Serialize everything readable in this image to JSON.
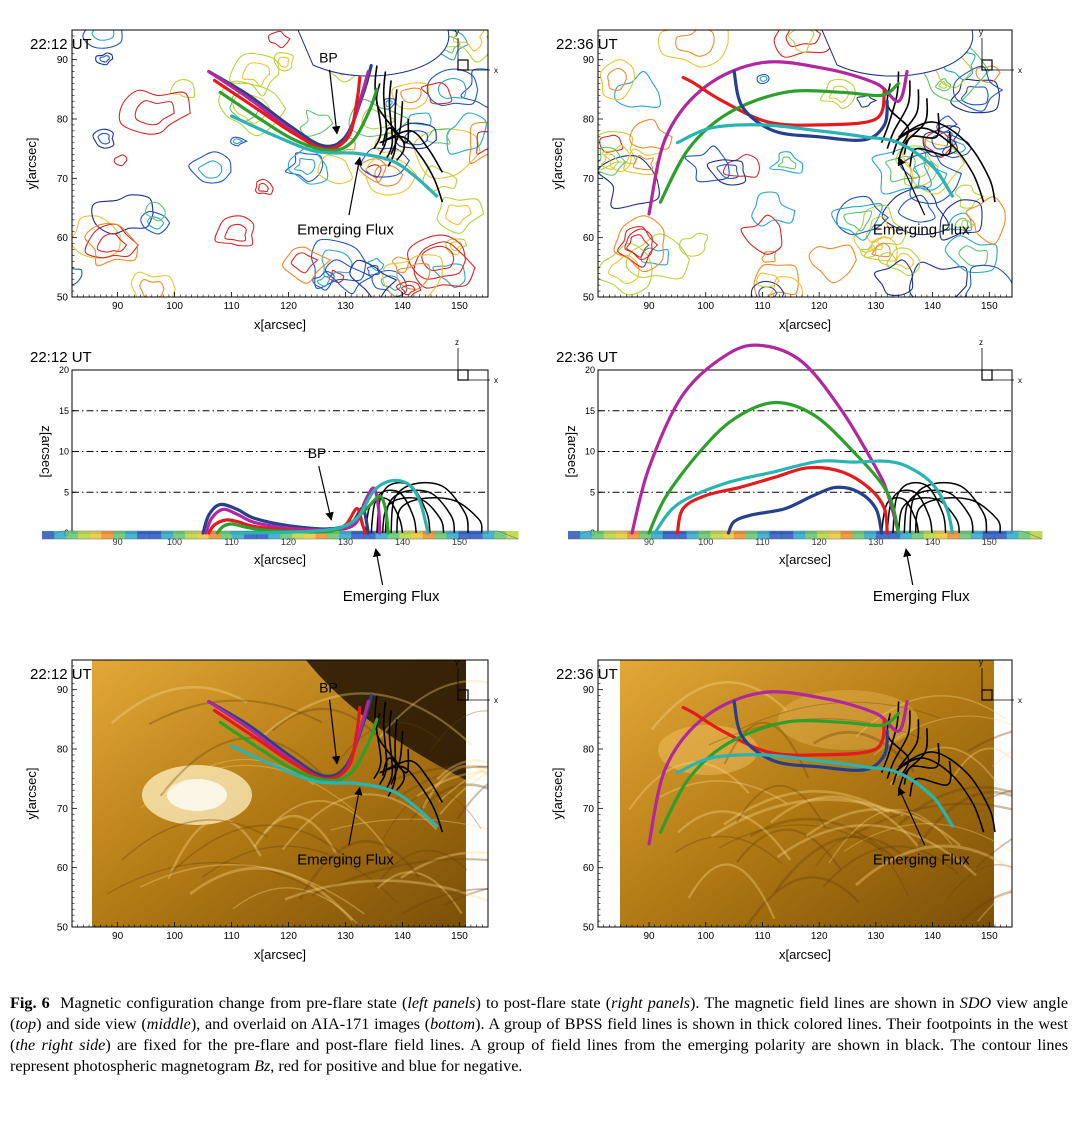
{
  "panels": {
    "top_left": {
      "time": "22:12 UT",
      "xlabel": "x[arcsec]",
      "ylabel": "y[arcsec]",
      "xticks": [
        "90",
        "100",
        "110",
        "120",
        "130",
        "140",
        "150"
      ],
      "yticks": [
        "50",
        "60",
        "70",
        "80",
        "90"
      ],
      "labels": {
        "bp": "BP",
        "ef": "Emerging Flux"
      }
    },
    "top_right": {
      "time": "22:36 UT",
      "xlabel": "x[arcsec]",
      "ylabel": "y[arcsec]",
      "xticks": [
        "90",
        "100",
        "110",
        "120",
        "130",
        "140",
        "150"
      ],
      "yticks": [
        "50",
        "60",
        "70",
        "80",
        "90"
      ],
      "labels": {
        "ef": "Emerging Flux"
      }
    },
    "mid_left": {
      "time": "22:12 UT",
      "xlabel": "x[arcsec]",
      "ylabel": "z[arcsec]",
      "xticks": [
        "90",
        "100",
        "110",
        "120",
        "130",
        "140",
        "150"
      ],
      "zticks": [
        "0",
        "5",
        "10",
        "15",
        "20"
      ],
      "labels": {
        "bp": "BP",
        "ef": "Emerging Flux"
      }
    },
    "mid_right": {
      "time": "22:36 UT",
      "xlabel": "x[arcsec]",
      "ylabel": "z[arcsec]",
      "xticks": [
        "90",
        "100",
        "110",
        "120",
        "130",
        "140",
        "150"
      ],
      "zticks": [
        "0",
        "5",
        "10",
        "15",
        "20"
      ],
      "labels": {
        "ef": "Emerging Flux"
      }
    },
    "bottom_left": {
      "time": "22:12 UT",
      "xlabel": "x[arcsec]",
      "ylabel": "y[arcsec]",
      "xticks": [
        "90",
        "100",
        "110",
        "120",
        "130",
        "140",
        "150"
      ],
      "yticks": [
        "50",
        "60",
        "70",
        "80",
        "90"
      ],
      "labels": {
        "bp": "BP",
        "ef": "Emerging Flux"
      }
    },
    "bottom_right": {
      "time": "22:36 UT",
      "xlabel": "x[arcsec]",
      "ylabel": "y[arcsec]",
      "xticks": [
        "90",
        "100",
        "110",
        "120",
        "130",
        "140",
        "150"
      ],
      "yticks": [
        "50",
        "60",
        "70",
        "80",
        "90"
      ],
      "labels": {
        "ef": "Emerging Flux"
      }
    }
  },
  "axes_icon": {
    "top": {
      "a": "y",
      "b": "x"
    },
    "side": {
      "a": "z",
      "b": "x"
    }
  },
  "colors": {
    "blue": "#27408b",
    "red": "#e41a1c",
    "green": "#2ca02c",
    "purple": "#b0279f",
    "cyan": "#2ab3b3",
    "black": "#000000",
    "aia": "#c48a10"
  },
  "caption": {
    "label": "Fig. 6",
    "s1": "Magnetic configuration change from pre-flare state (",
    "i1": "left panels",
    "s2": ") to post-flare state (",
    "i2": "right panels",
    "s3": "). The magnetic field lines are shown in ",
    "i3": "SDO",
    "s4": " view angle (",
    "i4": "top",
    "s5": ") and side view (",
    "i5": "middle",
    "s6": "), and overlaid on AIA-171 images (",
    "i6": "bottom",
    "s7": "). A group of BPSS field lines is shown in thick colored lines. Their footpoints in the west (",
    "i7": "the right side",
    "s8": ") are fixed for the pre-flare and post-flare field lines. A group of field lines from the emerging polarity are shown in black. The contour lines represent photospheric magnetogram ",
    "bz": "Bz",
    "s9": ", red for positive and blue for negative."
  }
}
